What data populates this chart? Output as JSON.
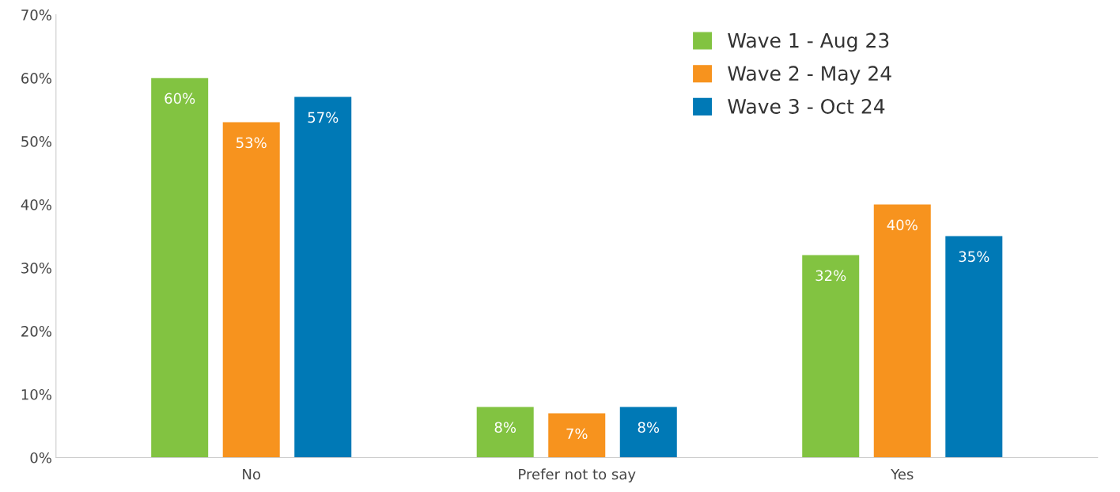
{
  "chart_data": {
    "type": "bar",
    "categories": [
      "No",
      "Prefer not to say",
      "Yes"
    ],
    "series": [
      {
        "name": "Wave 1 - Aug 23",
        "color": "#82c341",
        "values": [
          60,
          8,
          32
        ],
        "value_labels": [
          "60%",
          "8%",
          "32%"
        ]
      },
      {
        "name": "Wave 2 - May 24",
        "color": "#f7931e",
        "values": [
          53,
          7,
          40
        ],
        "value_labels": [
          "53%",
          "7%",
          "40%"
        ]
      },
      {
        "name": "Wave 3 - Oct 24",
        "color": "#0079b6",
        "values": [
          57,
          8,
          35
        ],
        "value_labels": [
          "57%",
          "8%",
          "35%"
        ]
      }
    ],
    "ylim": [
      0,
      70
    ],
    "yticks": [
      {
        "value": 0,
        "label": "0%"
      },
      {
        "value": 10,
        "label": "10%"
      },
      {
        "value": 20,
        "label": "20%"
      },
      {
        "value": 30,
        "label": "30%"
      },
      {
        "value": 40,
        "label": "40%"
      },
      {
        "value": 50,
        "label": "50%"
      },
      {
        "value": 60,
        "label": "60%"
      },
      {
        "value": 70,
        "label": "70%"
      }
    ],
    "grid": false,
    "legend": "top right"
  }
}
